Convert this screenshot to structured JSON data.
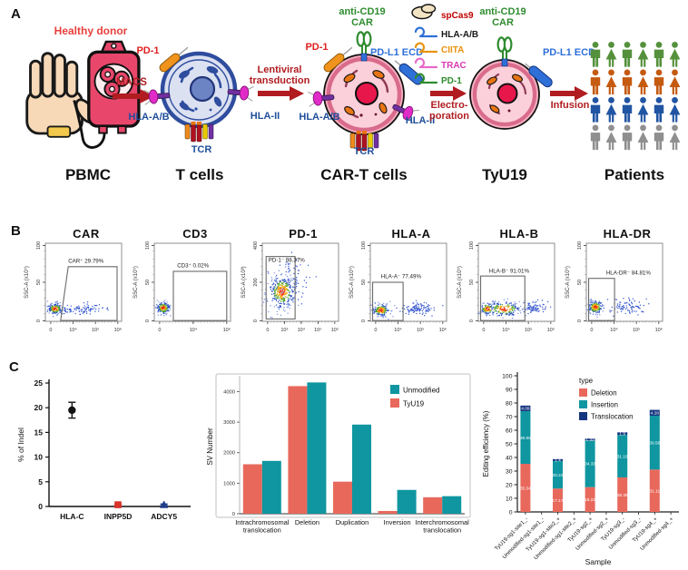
{
  "panelA": {
    "label": "A",
    "donor_label": "Healthy donor",
    "stage_labels": [
      "PBMC",
      "T cells",
      "CAR-T cells",
      "TyU19",
      "Patients"
    ],
    "process_labels": {
      "macs": "MACS",
      "lentiviral": [
        "Lentiviral",
        "transduction"
      ],
      "electroporation": [
        "Electro-",
        "poration"
      ],
      "infusion": "Infusion"
    },
    "t_cell": {
      "pd1": "PD-1",
      "hla_ab": "HLA-A/B",
      "hla_ii": "HLA-II",
      "tcr": "TCR"
    },
    "car_t_cell": {
      "anti_cd19": "anti-CD19",
      "car": "CAR",
      "pd1": "PD-1",
      "pdl1_ecd": "PD-L1 ECD",
      "hla_ab": "HLA-A/B",
      "hla_ii": "HLA-II",
      "tcr": "TCR"
    },
    "tyu19_cell": {
      "anti_cd19": "anti-CD19",
      "car": "CAR",
      "pdl1_ecd": "PD-L1 ECD"
    },
    "rnp_items": [
      {
        "label": "spCas9",
        "color": "#C00000",
        "icon_color": "#F2E3C2",
        "icon": "cas9-protein"
      },
      {
        "label": "HLA-A/B",
        "color": "#1a1a1a",
        "icon_color": "#2E6FD8",
        "icon": "sgRNA"
      },
      {
        "label": "CIITA",
        "color": "#E8920C",
        "icon_color": "#E8920C",
        "icon": "sgRNA"
      },
      {
        "label": "TRAC",
        "color": "#D939B5",
        "icon_color": "#E86AC8",
        "icon": "sgRNA"
      },
      {
        "label": "PD-1",
        "color": "#2E8B2E",
        "icon_color": "#2E8B2E",
        "icon": "sgRNA"
      }
    ],
    "patients_rows": [
      "#55913C",
      "#C55A11",
      "#2155A3",
      "#8F8F8F"
    ],
    "patients_per_row": 6
  },
  "panelB": {
    "label": "B",
    "plots": [
      {
        "title": "CAR",
        "gate_label": "CAR⁺ 29.79%",
        "ylabel": "SSC-A (x10⁵)",
        "yticks": [
          "0",
          "50",
          "100"
        ],
        "xticks": [
          "0",
          "10⁴",
          "10⁵",
          "10⁶"
        ]
      },
      {
        "title": "CD3",
        "gate_label": "CD3⁺ 0.02%",
        "ylabel": "SSC-A (x10⁵)",
        "yticks": [
          "0",
          "50",
          "100"
        ],
        "xticks": [
          "0",
          "10⁴",
          "10⁶"
        ]
      },
      {
        "title": "PD-1",
        "gate_label": "PD-1⁻ 98.37%",
        "ylabel": "SSC-A (x10³)",
        "yticks": [
          "0",
          "200",
          "400"
        ],
        "xticks": [
          "0",
          "10³",
          "10⁴",
          "10⁵",
          "10⁶"
        ]
      },
      {
        "title": "HLA-A",
        "gate_label": "HLA-A⁻ 77.49%",
        "ylabel": "SSC-A (x10⁵)",
        "yticks": [
          "0",
          "50",
          "100"
        ],
        "xticks": [
          "0",
          "10⁴",
          "10⁵",
          "10⁶"
        ]
      },
      {
        "title": "HLA-B",
        "gate_label": "HLA-B⁻ 91.01%",
        "ylabel": "SSC-A (x10⁵)",
        "yticks": [
          "0",
          "50",
          "100"
        ],
        "xticks": [
          "0",
          "10⁴",
          "10⁵",
          "10⁶"
        ]
      },
      {
        "title": "HLA-DR",
        "gate_label": "HLA-DR⁻ 84.81%",
        "ylabel": "SSC-A (x10⁵)",
        "yticks": [
          "0",
          "50",
          "100"
        ],
        "xticks": [
          "0",
          "10⁴",
          "10⁵",
          "10⁶"
        ]
      }
    ]
  },
  "panelC": {
    "label": "C"
  },
  "chart_data": [
    {
      "type": "scatter",
      "ylabel": "% of Indel",
      "ylim": [
        0,
        25
      ],
      "yticks": [
        0,
        5,
        10,
        15,
        20,
        25
      ],
      "categories": [
        "HLA-C",
        "INPP5D",
        "ADCY5"
      ],
      "points": [
        {
          "category": "HLA-C",
          "value": 19.5,
          "error": 1.6,
          "marker": "circle",
          "color": "#111111"
        },
        {
          "category": "INPP5D",
          "value": 0.35,
          "error": 0.15,
          "marker": "square",
          "color": "#D9352B"
        },
        {
          "category": "ADCY5",
          "value": 0.35,
          "error": 0.15,
          "marker": "triangle",
          "color": "#1F3D8C"
        }
      ]
    },
    {
      "type": "bar",
      "ylabel": "SV Number",
      "ylim": [
        0,
        4400
      ],
      "yticks": [
        0,
        1000,
        2000,
        3000,
        4000
      ],
      "categories": [
        "Intrachromosomal\ntranslocation",
        "Deletion",
        "Duplication",
        "Inversion",
        "Interchromosomal\ntranslocation"
      ],
      "series": [
        {
          "name": "TyU19",
          "color": "#E8695C",
          "values": [
            1620,
            4180,
            1050,
            90,
            540
          ]
        },
        {
          "name": "Unmodified",
          "color": "#0F96A0",
          "values": [
            1730,
            4300,
            2920,
            780,
            575
          ]
        }
      ],
      "legend_order": [
        "Unmodified",
        "TyU19"
      ],
      "legend_position": "top-right",
      "grid": false
    },
    {
      "type": "stacked-bar",
      "ylabel": "Editing efficiency (%)",
      "xlabel": "Sample",
      "ylim": [
        0,
        100
      ],
      "yticks": [
        0,
        10,
        20,
        30,
        40,
        50,
        60,
        70,
        80,
        90,
        100
      ],
      "legend_title": "type",
      "categories": [
        "TyU19-sg1-site1_-",
        "Unmodified-sg1-site1_-",
        "TyU19-sg1-site2_+",
        "Unmodified-sg1-site2_+",
        "TyU19-sg2_+",
        "Unmodified-sg2_+",
        "TyU19-sg3_-",
        "Unmodified-sg3_-",
        "TyU19-sg4_+",
        "Unmodified-sg4_+"
      ],
      "series": [
        {
          "name": "Deletion",
          "color": "#E8695C",
          "values": [
            35.34,
            0,
            17.17,
            0,
            18.22,
            0,
            25.35,
            0,
            31.11,
            0
          ]
        },
        {
          "name": "Insertion",
          "color": "#0F96A0",
          "values": [
            38.68,
            0,
            20.22,
            0,
            34.33,
            0,
            31.19,
            0,
            39.56,
            0
          ]
        },
        {
          "name": "Translocation",
          "color": "#16357F",
          "values": [
            4.09,
            0,
            1.4,
            0,
            1.32,
            0,
            1.9,
            0,
            4.28,
            0
          ]
        }
      ],
      "show_segment_labels": true
    }
  ]
}
